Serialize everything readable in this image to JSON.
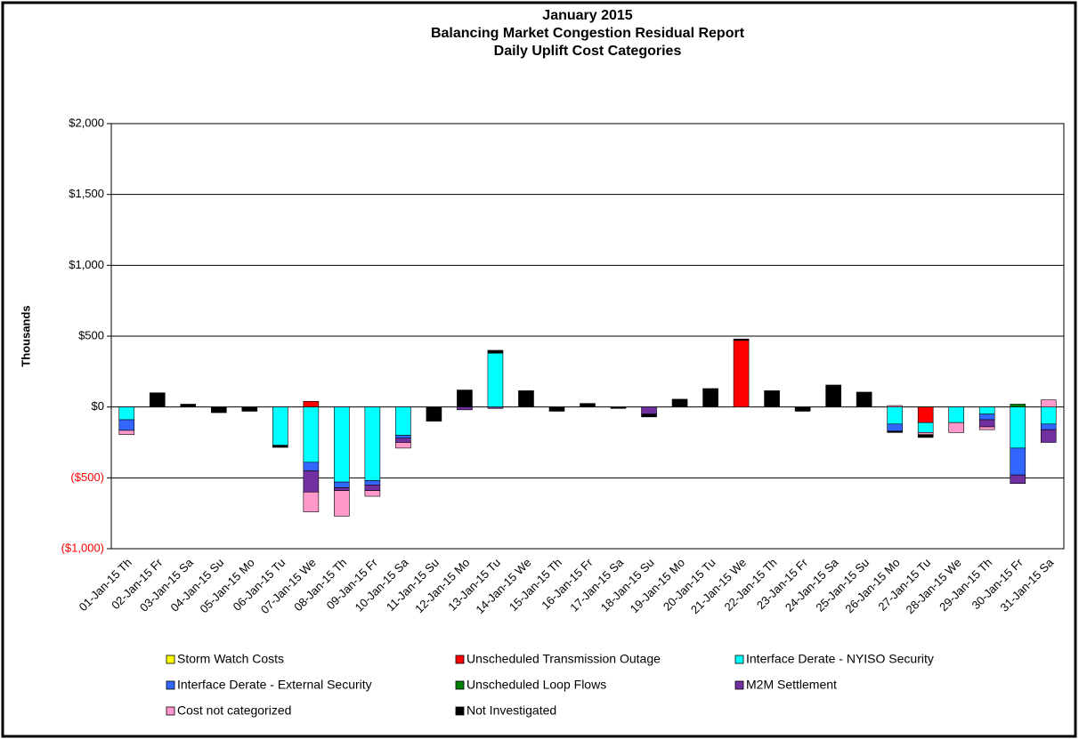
{
  "chart_data": {
    "type": "stacked_bar",
    "title": [
      "January 2015",
      "Balancing Market Congestion Residual Report",
      "Daily Uplift Cost Categories"
    ],
    "y_label": "Thousands",
    "categories": [
      "01-Jan-15 Th",
      "02-Jan-15 Fr",
      "03-Jan-15 Sa",
      "04-Jan-15 Su",
      "05-Jan-15 Mo",
      "06-Jan-15 Tu",
      "07-Jan-15 We",
      "08-Jan-15 Th",
      "09-Jan-15 Fr",
      "10-Jan-15 Sa",
      "11-Jan-15 Su",
      "12-Jan-15 Mo",
      "13-Jan-15 Tu",
      "14-Jan-15 We",
      "15-Jan-15 Th",
      "16-Jan-15 Fr",
      "17-Jan-15 Sa",
      "18-Jan-15 Su",
      "19-Jan-15 Mo",
      "20-Jan-15 Tu",
      "21-Jan-15 We",
      "22-Jan-15 Th",
      "23-Jan-15 Fr",
      "24-Jan-15 Sa",
      "25-Jan-15 Su",
      "26-Jan-15 Mo",
      "27-Jan-15 Tu",
      "28-Jan-15 We",
      "29-Jan-15 Th",
      "30-Jan-15 Fr",
      "31-Jan-15 Sa"
    ],
    "series": [
      {
        "name": "Storm Watch Costs",
        "color": "#ffff00",
        "values": [
          0,
          0,
          0,
          0,
          0,
          0,
          0,
          0,
          0,
          0,
          0,
          0,
          0,
          0,
          0,
          0,
          0,
          0,
          0,
          0,
          0,
          0,
          0,
          0,
          0,
          0,
          0,
          0,
          0,
          0,
          0
        ]
      },
      {
        "name": "Unscheduled Transmission Outage",
        "color": "#ff0000",
        "values": [
          0,
          0,
          0,
          0,
          0,
          0,
          40,
          0,
          0,
          0,
          0,
          0,
          0,
          0,
          0,
          0,
          0,
          0,
          0,
          0,
          470,
          0,
          0,
          0,
          0,
          0,
          -110,
          0,
          0,
          0,
          0
        ]
      },
      {
        "name": "Interface Derate - NYISO Security",
        "color": "#00ffff",
        "values": [
          -90,
          0,
          0,
          0,
          0,
          -270,
          -390,
          -530,
          -520,
          -200,
          0,
          0,
          380,
          0,
          0,
          0,
          0,
          0,
          0,
          0,
          0,
          0,
          0,
          0,
          0,
          -120,
          -70,
          -110,
          -50,
          -290,
          -120
        ]
      },
      {
        "name": "Interface Derate - External Security",
        "color": "#3366ff",
        "values": [
          -75,
          0,
          0,
          0,
          0,
          0,
          -60,
          -40,
          -30,
          -20,
          0,
          0,
          0,
          0,
          0,
          0,
          0,
          0,
          0,
          0,
          0,
          0,
          0,
          0,
          0,
          -50,
          0,
          0,
          -40,
          -190,
          -40
        ]
      },
      {
        "name": "Unscheduled Loop Flows",
        "color": "#008000",
        "values": [
          0,
          0,
          0,
          0,
          0,
          0,
          0,
          0,
          0,
          0,
          0,
          0,
          0,
          0,
          0,
          0,
          0,
          0,
          0,
          0,
          0,
          0,
          0,
          0,
          0,
          0,
          0,
          0,
          0,
          20,
          0
        ]
      },
      {
        "name": "M2M Settlement",
        "color": "#7030a0",
        "values": [
          0,
          0,
          0,
          0,
          0,
          0,
          -150,
          -20,
          -40,
          -30,
          0,
          -20,
          -10,
          0,
          0,
          0,
          0,
          -50,
          0,
          0,
          0,
          0,
          0,
          0,
          0,
          0,
          0,
          0,
          -50,
          -60,
          -90
        ]
      },
      {
        "name": "Cost not categorized",
        "color": "#ff99cc",
        "values": [
          -30,
          0,
          0,
          0,
          0,
          0,
          -140,
          -180,
          -40,
          -40,
          0,
          0,
          0,
          0,
          0,
          0,
          0,
          0,
          0,
          0,
          0,
          0,
          0,
          0,
          0,
          10,
          -15,
          -70,
          -20,
          0,
          50
        ]
      },
      {
        "name": "Not Investigated",
        "color": "#000000",
        "values": [
          0,
          100,
          20,
          -40,
          -30,
          -15,
          0,
          0,
          0,
          0,
          -100,
          120,
          20,
          115,
          -30,
          25,
          -10,
          -20,
          55,
          130,
          10,
          115,
          -30,
          155,
          105,
          -10,
          -20,
          0,
          0,
          0,
          0
        ]
      }
    ],
    "ylim": [
      -1000,
      2000
    ],
    "yticks": [
      {
        "value": 2000,
        "label": "$2,000"
      },
      {
        "value": 1500,
        "label": "$1,500"
      },
      {
        "value": 1000,
        "label": "$1,000"
      },
      {
        "value": 500,
        "label": "$500"
      },
      {
        "value": 0,
        "label": "$0"
      },
      {
        "value": -500,
        "label": "($500)"
      },
      {
        "value": -1000,
        "label": "($1,000)"
      }
    ],
    "negative_tick_color": "#ff0000",
    "grid": true,
    "legend": "bottom"
  }
}
